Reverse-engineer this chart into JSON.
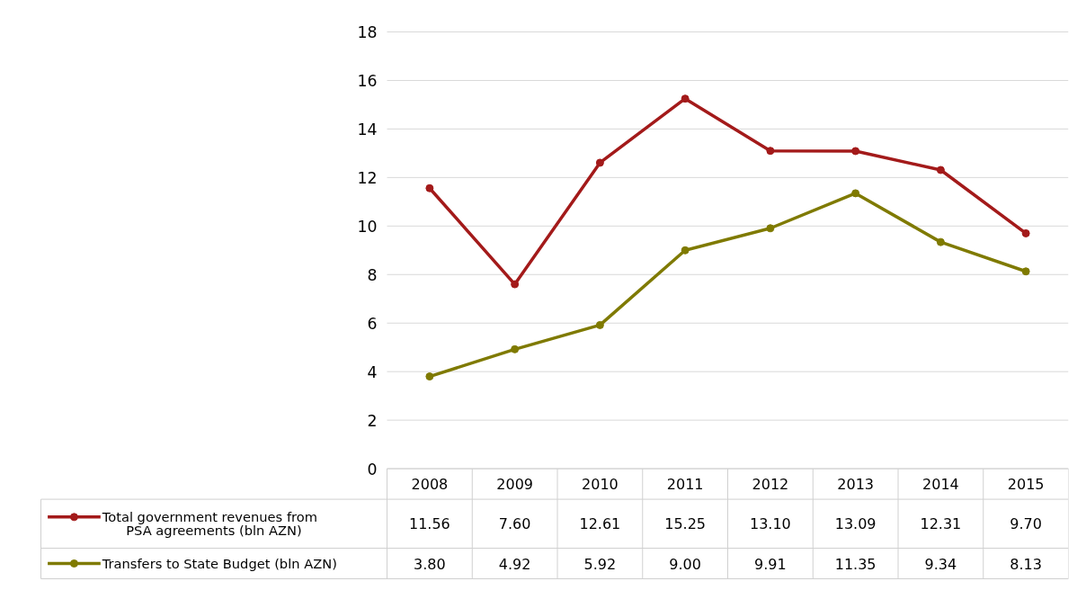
{
  "chart_data": {
    "type": "line",
    "categories": [
      "2008",
      "2009",
      "2010",
      "2011",
      "2012",
      "2013",
      "2014",
      "2015"
    ],
    "series": [
      {
        "name": "Total government revenues from PSA agreements (bln AZN)",
        "color": "#a31a1a",
        "values": [
          11.56,
          7.6,
          12.61,
          15.25,
          13.1,
          13.09,
          12.31,
          9.7
        ],
        "value_labels": [
          "11.56",
          "7.60",
          "12.61",
          "15.25",
          "13.10",
          "13.09",
          "12.31",
          "9.70"
        ]
      },
      {
        "name": "Transfers to State Budget (bln AZN)",
        "color": "#7f7a00",
        "values": [
          3.8,
          4.92,
          5.92,
          9.0,
          9.91,
          11.35,
          9.34,
          8.13
        ],
        "value_labels": [
          "3.80",
          "4.92",
          "5.92",
          "9.00",
          "9.91",
          "11.35",
          "9.34",
          "8.13"
        ]
      }
    ],
    "ylim": [
      0,
      18
    ],
    "yticks": [
      0,
      2,
      4,
      6,
      8,
      10,
      12,
      14,
      16,
      18
    ],
    "grid": "y",
    "marker": "circle",
    "line_style": "solid",
    "legend": "bottom"
  }
}
